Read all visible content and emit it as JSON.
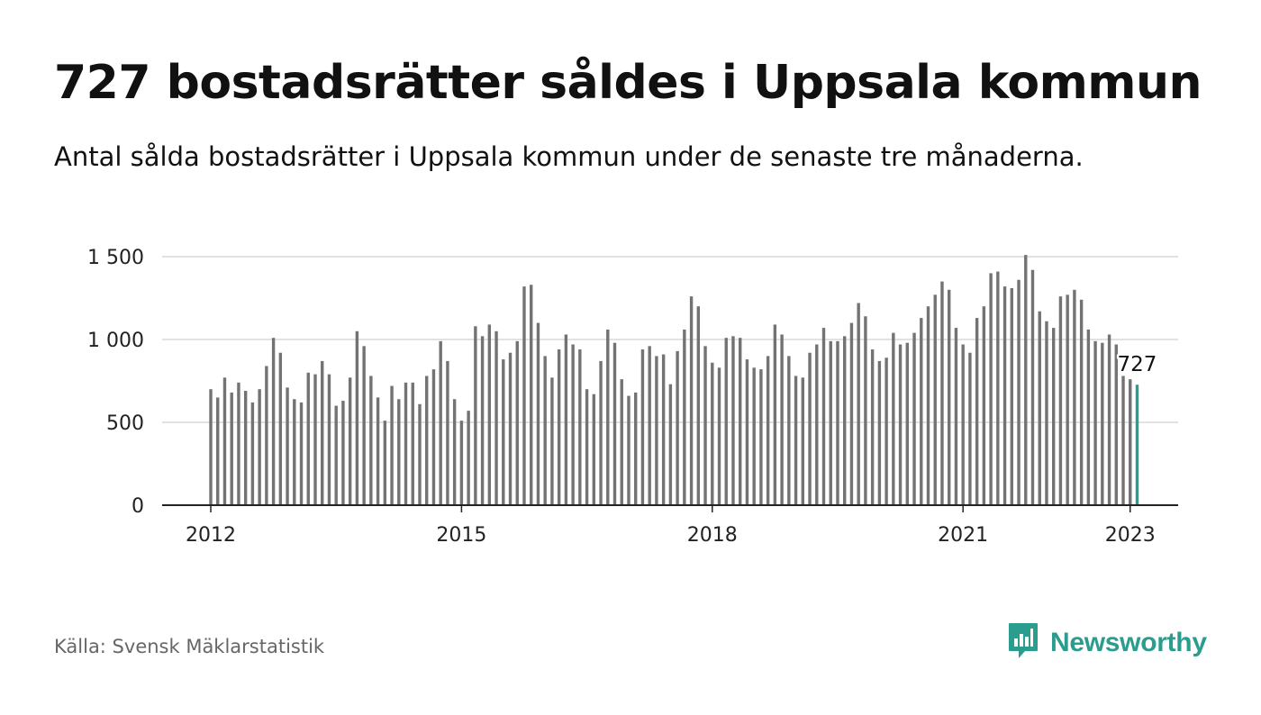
{
  "header": {
    "title": "727 bostadsrätter såldes i Uppsala kommun",
    "subtitle": "Antal sålda bostadsrätter i Uppsala kommun under de senaste tre månaderna."
  },
  "footer": {
    "source": "Källa: Svensk Mäklarstatistik",
    "brand": "Newsworthy",
    "brand_icon": "bar-chart-speech-bubble-icon"
  },
  "colors": {
    "bar": "#737373",
    "highlight": "#2a9d8f",
    "grid": "#d9d9d9",
    "axis": "#222222",
    "brand": "#2a9d8f"
  },
  "chart_data": {
    "type": "bar",
    "ylim": [
      0,
      1500
    ],
    "y_ticks": [
      {
        "value": 0,
        "label": "0"
      },
      {
        "value": 500,
        "label": "500"
      },
      {
        "value": 1000,
        "label": "1 000"
      },
      {
        "value": 1500,
        "label": "1 500"
      }
    ],
    "x_ticks": [
      {
        "year": 2012,
        "label": "2012"
      },
      {
        "year": 2015,
        "label": "2015"
      },
      {
        "year": 2018,
        "label": "2018"
      },
      {
        "year": 2021,
        "label": "2021"
      },
      {
        "year": 2023,
        "label": "2023"
      }
    ],
    "start_year": 2012,
    "grid": true,
    "highlight_label": "727",
    "values": [
      700,
      650,
      770,
      680,
      740,
      690,
      620,
      700,
      840,
      1010,
      920,
      710,
      640,
      620,
      800,
      790,
      870,
      790,
      600,
      630,
      770,
      1050,
      960,
      780,
      650,
      510,
      720,
      640,
      740,
      740,
      610,
      780,
      820,
      990,
      870,
      640,
      510,
      570,
      1080,
      1020,
      1090,
      1050,
      880,
      920,
      990,
      1320,
      1330,
      1100,
      900,
      770,
      940,
      1030,
      970,
      940,
      700,
      670,
      870,
      1060,
      980,
      760,
      660,
      680,
      940,
      960,
      900,
      910,
      730,
      930,
      1060,
      1260,
      1200,
      960,
      860,
      830,
      1010,
      1020,
      1010,
      880,
      830,
      820,
      900,
      1090,
      1030,
      900,
      780,
      770,
      920,
      970,
      1070,
      990,
      990,
      1020,
      1100,
      1220,
      1140,
      940,
      870,
      890,
      1040,
      970,
      980,
      1040,
      1130,
      1200,
      1270,
      1350,
      1300,
      1070,
      970,
      920,
      1130,
      1200,
      1400,
      1410,
      1320,
      1310,
      1360,
      1510,
      1420,
      1170,
      1110,
      1070,
      1260,
      1270,
      1300,
      1240,
      1060,
      990,
      980,
      1030,
      970,
      780,
      760,
      727
    ]
  }
}
